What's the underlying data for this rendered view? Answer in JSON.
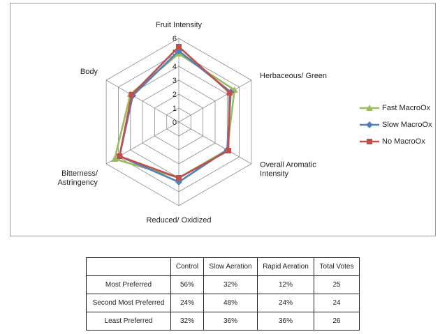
{
  "chart_data": {
    "type": "radar",
    "axes": [
      "Fruit Intensity",
      "Herbaceous/ Green",
      "Overall Aromatic Intensity",
      "Reduced/ Oxidized",
      "Bitterness/ Astringency",
      "Body"
    ],
    "axis_label_lines": [
      [
        "Fruit Intensity"
      ],
      [
        "Herbaceous/ Green"
      ],
      [
        "Overall Aromatic",
        "Intensity"
      ],
      [
        "Reduced/ Oxidized"
      ],
      [
        "Bitterness/",
        "Astringency"
      ],
      [
        "Body"
      ]
    ],
    "range": [
      0,
      6
    ],
    "ticks": [
      "0",
      "1",
      "2",
      "3",
      "4",
      "5",
      "6"
    ],
    "series": [
      {
        "name": "Fast MacroOx",
        "color": "#9bbb59",
        "marker": "triangle",
        "values": [
          4.9,
          4.6,
          4.0,
          4.0,
          5.3,
          4.0
        ]
      },
      {
        "name": "Slow MacroOx",
        "color": "#4f81bd",
        "marker": "diamond",
        "values": [
          5.1,
          4.3,
          4.0,
          4.3,
          4.9,
          3.8
        ]
      },
      {
        "name": "No MacroOx",
        "color": "#c0504d",
        "marker": "square",
        "values": [
          5.4,
          4.2,
          4.1,
          4.0,
          4.9,
          3.9
        ]
      }
    ],
    "legend_position": "right",
    "grid": true
  },
  "table": {
    "header": [
      "",
      "Control",
      "Slow Aeration",
      "Rapid Aeration",
      "Total Votes"
    ],
    "rows": [
      [
        "Most Preferred",
        "56%",
        "32%",
        "12%",
        "25"
      ],
      [
        "Second Most Preferred",
        "24%",
        "48%",
        "24%",
        "24"
      ],
      [
        "Least Preferred",
        "32%",
        "36%",
        "36%",
        "26"
      ]
    ]
  }
}
